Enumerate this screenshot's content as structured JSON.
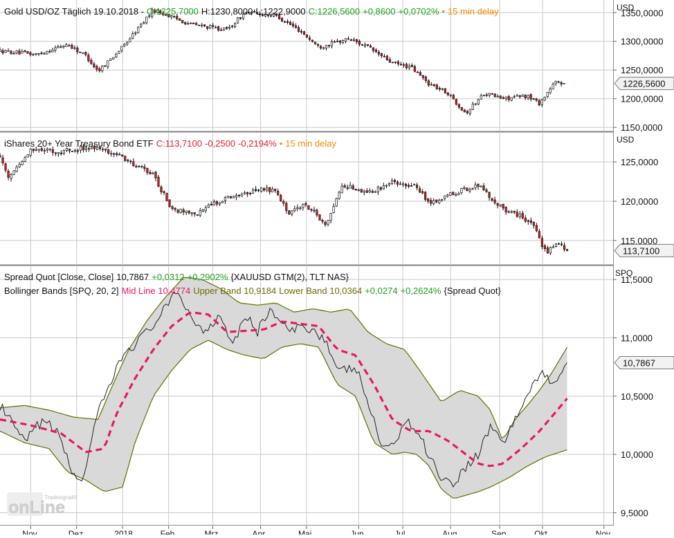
{
  "chart_data": [
    {
      "type": "candlestick",
      "header": {
        "name": "Gold USD/OZ Täglich 19.10.2018",
        "dash": " - ",
        "open": "O:1225,7000",
        "high": "H:1230,8000",
        "low": "L:1222,9000",
        "close": "C:1226,5600",
        "change": "+0,8600",
        "change_pct": "+0,0702%",
        "delay": "15 min delay"
      },
      "unit": "USD",
      "y_ticks": [
        "1350,0000",
        "1300,0000",
        "1250,0000",
        "1200,0000",
        "1150,0000"
      ],
      "y_tick_values": [
        1350,
        1300,
        1250,
        1200,
        1150
      ],
      "ylim": [
        1143,
        1372
      ],
      "last_label": "1226,5600",
      "last_value": 1226.56,
      "anchors": [
        [
          0,
          1283
        ],
        [
          0.06,
          1277
        ],
        [
          0.11,
          1295
        ],
        [
          0.14,
          1275
        ],
        [
          0.16,
          1248
        ],
        [
          0.2,
          1290
        ],
        [
          0.25,
          1355
        ],
        [
          0.31,
          1330
        ],
        [
          0.37,
          1320
        ],
        [
          0.4,
          1350
        ],
        [
          0.45,
          1345
        ],
        [
          0.49,
          1318
        ],
        [
          0.52,
          1290
        ],
        [
          0.57,
          1305
        ],
        [
          0.6,
          1290
        ],
        [
          0.64,
          1262
        ],
        [
          0.67,
          1255
        ],
        [
          0.7,
          1226
        ],
        [
          0.73,
          1210
        ],
        [
          0.76,
          1175
        ],
        [
          0.79,
          1210
        ],
        [
          0.82,
          1200
        ],
        [
          0.86,
          1205
        ],
        [
          0.88,
          1192
        ],
        [
          0.905,
          1228
        ],
        [
          0.92,
          1226.6
        ]
      ],
      "style": {
        "up_color": "#ffffff",
        "down_color": "#e11f26",
        "line_color": "#111111"
      }
    },
    {
      "type": "candlestick",
      "header": {
        "name": "iShares 20+ Year Treasury Bond ETF",
        "close": "C:113,7100",
        "change": "-0,2500",
        "change_pct": "-0,2194%",
        "delay": "15 min delay"
      },
      "unit": "USD",
      "y_ticks": [
        "125,0000",
        "120,0000",
        "115,0000"
      ],
      "y_tick_values": [
        125,
        120,
        115
      ],
      "ylim": [
        111.9,
        128.8
      ],
      "last_label": "113,7100",
      "last_value": 113.71,
      "anchors": [
        [
          0,
          125.8
        ],
        [
          0.015,
          123.0
        ],
        [
          0.05,
          126.5
        ],
        [
          0.1,
          126.3
        ],
        [
          0.15,
          127.0
        ],
        [
          0.2,
          125.6
        ],
        [
          0.25,
          123.3
        ],
        [
          0.28,
          119.0
        ],
        [
          0.32,
          118.5
        ],
        [
          0.37,
          120.5
        ],
        [
          0.42,
          121.5
        ],
        [
          0.45,
          121.5
        ],
        [
          0.47,
          118.5
        ],
        [
          0.5,
          119.5
        ],
        [
          0.53,
          117.0
        ],
        [
          0.56,
          122.0
        ],
        [
          0.6,
          121.0
        ],
        [
          0.64,
          122.5
        ],
        [
          0.68,
          122.0
        ],
        [
          0.7,
          119.5
        ],
        [
          0.74,
          121.0
        ],
        [
          0.78,
          122.0
        ],
        [
          0.82,
          119.0
        ],
        [
          0.85,
          118.0
        ],
        [
          0.87,
          117.0
        ],
        [
          0.89,
          113.5
        ],
        [
          0.91,
          114.6
        ],
        [
          0.925,
          113.7
        ]
      ],
      "style": {
        "up_color": "#ffffff",
        "down_color": "#e11f26",
        "line_color": "#111111"
      }
    },
    {
      "type": "line",
      "header1": {
        "name": "Spread Quot [Close, Close]",
        "value": "10,7867",
        "change": "+0,0312",
        "change_pct": "+0,2902%",
        "source": "{XAUUSD GTM(2), TLT NAS}"
      },
      "header2": {
        "name": "Bollinger Bands [SPQ, 20, 2]",
        "mid_text": "Mid Line 10,4774",
        "upper_text": "Upper Band 10,9184",
        "lower_text": "Lower Band 10,0364",
        "change": "+0,0274",
        "change_pct": "+0,2624%",
        "source": "{Spread Quot}"
      },
      "unit": "SPQ",
      "y_ticks": [
        "11,5000",
        "11,0000",
        "10,5000",
        "10,0000",
        "9,5000"
      ],
      "y_tick_values": [
        11.5,
        11.0,
        10.5,
        10.0,
        9.5
      ],
      "ylim": [
        9.39,
        11.62
      ],
      "last_label": "10,7867",
      "last_value": 10.7867,
      "series": [
        {
          "name": "Spread Quot",
          "anchors": [
            [
              0,
              10.42
            ],
            [
              0.04,
              10.1
            ],
            [
              0.07,
              10.3
            ],
            [
              0.1,
              10.15
            ],
            [
              0.115,
              9.85
            ],
            [
              0.135,
              9.78
            ],
            [
              0.16,
              10.35
            ],
            [
              0.18,
              10.6
            ],
            [
              0.2,
              10.85
            ],
            [
              0.24,
              11.05
            ],
            [
              0.27,
              11.25
            ],
            [
              0.29,
              11.4
            ],
            [
              0.31,
              11.2
            ],
            [
              0.33,
              11.05
            ],
            [
              0.36,
              11.2
            ],
            [
              0.38,
              10.95
            ],
            [
              0.4,
              11.2
            ],
            [
              0.42,
              11.05
            ],
            [
              0.44,
              11.25
            ],
            [
              0.47,
              11.05
            ],
            [
              0.5,
              11.1
            ],
            [
              0.53,
              11.0
            ],
            [
              0.55,
              10.7
            ],
            [
              0.58,
              10.75
            ],
            [
              0.6,
              10.45
            ],
            [
              0.62,
              10.1
            ],
            [
              0.64,
              10.05
            ],
            [
              0.66,
              10.3
            ],
            [
              0.68,
              10.2
            ],
            [
              0.7,
              10.0
            ],
            [
              0.72,
              9.8
            ],
            [
              0.74,
              9.75
            ],
            [
              0.76,
              9.9
            ],
            [
              0.78,
              10.0
            ],
            [
              0.8,
              10.25
            ],
            [
              0.82,
              10.1
            ],
            [
              0.84,
              10.3
            ],
            [
              0.86,
              10.5
            ],
            [
              0.88,
              10.7
            ],
            [
              0.9,
              10.6
            ],
            [
              0.925,
              10.79
            ]
          ]
        },
        {
          "name": "Mid Line",
          "anchors": [
            [
              0,
              10.3
            ],
            [
              0.05,
              10.25
            ],
            [
              0.1,
              10.18
            ],
            [
              0.14,
              10.02
            ],
            [
              0.17,
              10.05
            ],
            [
              0.19,
              10.35
            ],
            [
              0.22,
              10.65
            ],
            [
              0.25,
              10.9
            ],
            [
              0.28,
              11.1
            ],
            [
              0.31,
              11.22
            ],
            [
              0.34,
              11.2
            ],
            [
              0.37,
              11.05
            ],
            [
              0.4,
              11.06
            ],
            [
              0.43,
              11.07
            ],
            [
              0.46,
              11.14
            ],
            [
              0.49,
              11.12
            ],
            [
              0.52,
              11.1
            ],
            [
              0.55,
              10.9
            ],
            [
              0.58,
              10.85
            ],
            [
              0.61,
              10.6
            ],
            [
              0.64,
              10.3
            ],
            [
              0.67,
              10.2
            ],
            [
              0.7,
              10.2
            ],
            [
              0.73,
              10.12
            ],
            [
              0.76,
              10.0
            ],
            [
              0.78,
              9.92
            ],
            [
              0.8,
              9.9
            ],
            [
              0.82,
              9.92
            ],
            [
              0.85,
              10.05
            ],
            [
              0.88,
              10.2
            ],
            [
              0.925,
              10.48
            ]
          ]
        },
        {
          "name": "Upper Band",
          "anchors": [
            [
              0,
              10.4
            ],
            [
              0.04,
              10.42
            ],
            [
              0.08,
              10.38
            ],
            [
              0.12,
              10.32
            ],
            [
              0.16,
              10.3
            ],
            [
              0.18,
              10.55
            ],
            [
              0.21,
              10.9
            ],
            [
              0.24,
              11.15
            ],
            [
              0.27,
              11.35
            ],
            [
              0.3,
              11.52
            ],
            [
              0.33,
              11.5
            ],
            [
              0.36,
              11.42
            ],
            [
              0.39,
              11.3
            ],
            [
              0.42,
              11.28
            ],
            [
              0.45,
              11.3
            ],
            [
              0.48,
              11.22
            ],
            [
              0.51,
              11.25
            ],
            [
              0.54,
              11.22
            ],
            [
              0.57,
              11.25
            ],
            [
              0.6,
              11.05
            ],
            [
              0.63,
              10.95
            ],
            [
              0.66,
              10.9
            ],
            [
              0.69,
              10.68
            ],
            [
              0.72,
              10.45
            ],
            [
              0.75,
              10.55
            ],
            [
              0.78,
              10.5
            ],
            [
              0.8,
              10.38
            ],
            [
              0.82,
              10.12
            ],
            [
              0.84,
              10.3
            ],
            [
              0.86,
              10.42
            ],
            [
              0.88,
              10.55
            ],
            [
              0.9,
              10.7
            ],
            [
              0.925,
              10.92
            ]
          ]
        },
        {
          "name": "Lower Band",
          "anchors": [
            [
              0,
              10.2
            ],
            [
              0.04,
              10.1
            ],
            [
              0.08,
              10.05
            ],
            [
              0.11,
              9.85
            ],
            [
              0.14,
              9.78
            ],
            [
              0.17,
              9.68
            ],
            [
              0.2,
              9.72
            ],
            [
              0.22,
              10.1
            ],
            [
              0.25,
              10.5
            ],
            [
              0.28,
              10.72
            ],
            [
              0.31,
              10.9
            ],
            [
              0.34,
              10.98
            ],
            [
              0.37,
              10.9
            ],
            [
              0.4,
              10.85
            ],
            [
              0.43,
              10.82
            ],
            [
              0.46,
              10.92
            ],
            [
              0.49,
              10.95
            ],
            [
              0.52,
              10.92
            ],
            [
              0.55,
              10.6
            ],
            [
              0.58,
              10.5
            ],
            [
              0.61,
              10.1
            ],
            [
              0.64,
              10.0
            ],
            [
              0.66,
              10.02
            ],
            [
              0.68,
              10.0
            ],
            [
              0.7,
              9.9
            ],
            [
              0.72,
              9.7
            ],
            [
              0.74,
              9.62
            ],
            [
              0.76,
              9.65
            ],
            [
              0.78,
              9.68
            ],
            [
              0.8,
              9.72
            ],
            [
              0.83,
              9.8
            ],
            [
              0.86,
              9.9
            ],
            [
              0.89,
              9.98
            ],
            [
              0.925,
              10.04
            ]
          ]
        }
      ],
      "style": {
        "price_color": "#222222",
        "mid_color": "#e8195c",
        "band_color": "#6a6a00",
        "band_fill": "#d9d9d9"
      }
    }
  ],
  "x_axis": {
    "labels": [
      "Nov",
      "Dez",
      "2018",
      "Feb",
      "Mrz",
      "Apr",
      "Mai",
      "Jun",
      "Jul",
      "Aug",
      "Sep",
      "Okt",
      "Nov"
    ],
    "positions": [
      0.05,
      0.125,
      0.2,
      0.275,
      0.347,
      0.425,
      0.5,
      0.585,
      0.657,
      0.735,
      0.815,
      0.885,
      0.985
    ]
  },
  "logo": {
    "main": "onLine",
    "small": "Tradesignal®"
  },
  "colors": {
    "up_text": "#1aa31a",
    "down_text": "#e11f26",
    "delay": "#f08a00",
    "mid": "#e8195c",
    "band": "#6a6a00",
    "grid": "#c8c8c8"
  }
}
